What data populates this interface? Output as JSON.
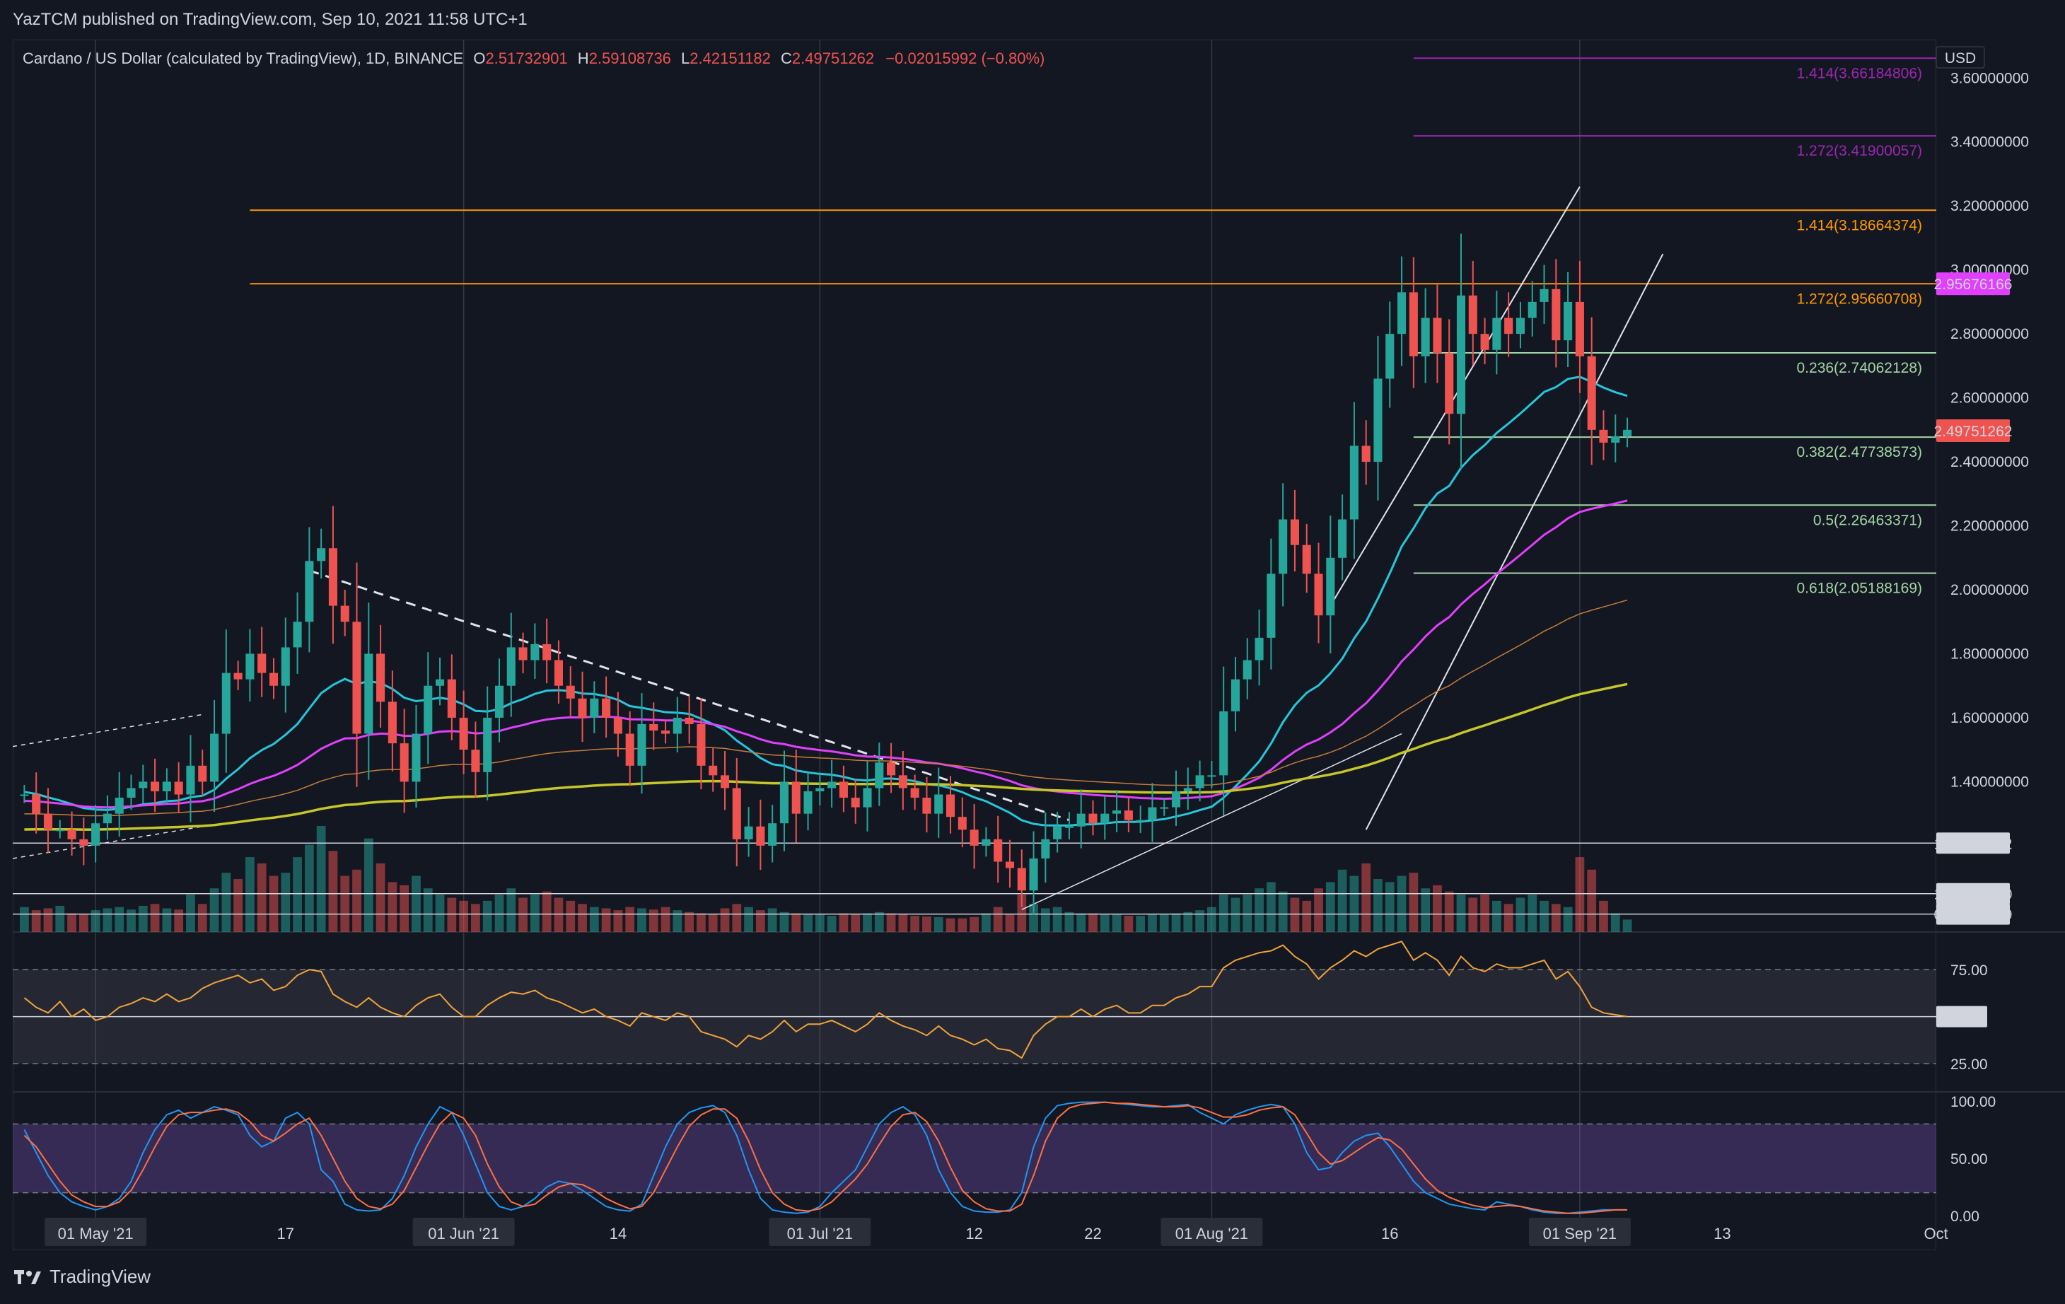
{
  "header": {
    "published": "YazTCM published on TradingView.com, Sep 10, 2021 11:58 UTC+1"
  },
  "legend": {
    "symbol": "Cardano / US Dollar (calculated by TradingView), 1D, BINANCE",
    "o_label": "O",
    "o_value": "2.51732901",
    "h_label": "H",
    "h_value": "2.59108736",
    "l_label": "L",
    "l_value": "2.42151182",
    "c_label": "C",
    "c_value": "2.49751262",
    "change": "−0.02015992 (−0.80%)"
  },
  "footer": {
    "brand": "TradingView"
  },
  "colors": {
    "bg": "#131722",
    "up": "#26a69a",
    "down": "#ef5350",
    "fib_purple": "#9c27b0",
    "fib_orange": "#ff9800",
    "fib_green": "#a5d6a7",
    "ema20": "#26c6da",
    "ema50": "#e040fb",
    "ema100": "#c67c3a",
    "ema200": "#c6c62a",
    "rsi": "#f0a23b",
    "stoch_k": "#2196f3",
    "stoch_d": "#ff7043"
  },
  "chart_data": {
    "type": "candlestick",
    "title": "Cardano / US Dollar (calculated by TradingView), 1D, BINANCE",
    "currency": "USD",
    "price_axis": {
      "ylim": [
        0.93,
        3.72
      ],
      "ticks": [
        "3.60000000",
        "3.40000000",
        "3.20000000",
        "3.00000000",
        "2.80000000",
        "2.60000000",
        "2.40000000",
        "2.20000000",
        "2.00000000",
        "1.80000000",
        "1.60000000",
        "1.40000000"
      ],
      "tick_values": [
        3.6,
        3.4,
        3.2,
        3.0,
        2.8,
        2.6,
        2.4,
        2.2,
        2.0,
        1.8,
        1.6,
        1.4
      ]
    },
    "x_axis": {
      "labels": [
        "01 May '21",
        "17",
        "01 Jun '21",
        "14",
        "01 Jul '21",
        "12",
        "22",
        "01 Aug '21",
        "16",
        "01 Sep '21",
        "13",
        "Oct"
      ],
      "day_index": [
        6,
        22,
        37,
        50,
        67,
        80,
        90,
        100,
        115,
        131,
        143,
        161
      ],
      "total_days": 162
    },
    "fib_levels": [
      {
        "label": "1.414(3.66184806)",
        "value": 3.66184806,
        "group": "purple"
      },
      {
        "label": "1.272(3.41900057)",
        "value": 3.41900057,
        "group": "purple"
      },
      {
        "label": "1.414(3.18664374)",
        "value": 3.18664374,
        "group": "orange"
      },
      {
        "label": "1.272(2.95660708)",
        "value": 2.95660708,
        "group": "orange"
      },
      {
        "label": "0.236(2.74062128)",
        "value": 2.74062128,
        "group": "green"
      },
      {
        "label": "0.382(2.47738573)",
        "value": 2.47738573,
        "group": "green"
      },
      {
        "label": "0.5(2.26463371)",
        "value": 2.26463371,
        "group": "green"
      },
      {
        "label": "0.618(2.05188169)",
        "value": 2.05188169,
        "group": "green"
      }
    ],
    "horizontal_levels": [
      {
        "label": "1.20791482",
        "value": 1.20791482
      },
      {
        "label": "1.05000000",
        "value": 1.05
      },
      {
        "label": "0.98617569",
        "value": 0.98617569
      }
    ],
    "price_tags": [
      {
        "label": "2.95676166",
        "value": 2.95676166,
        "color": "#e040fb"
      },
      {
        "label": "2.49751262",
        "value": 2.49751262,
        "color": "#ef5350"
      }
    ],
    "close_series": [
      1.36,
      1.3,
      1.25,
      1.25,
      1.22,
      1.2,
      1.27,
      1.3,
      1.35,
      1.38,
      1.4,
      1.37,
      1.4,
      1.36,
      1.45,
      1.4,
      1.55,
      1.74,
      1.72,
      1.8,
      1.74,
      1.7,
      1.82,
      1.9,
      2.09,
      2.13,
      1.95,
      1.9,
      1.55,
      1.8,
      1.65,
      1.52,
      1.4,
      1.55,
      1.7,
      1.72,
      1.6,
      1.5,
      1.43,
      1.6,
      1.7,
      1.82,
      1.78,
      1.83,
      1.78,
      1.7,
      1.66,
      1.6,
      1.66,
      1.6,
      1.55,
      1.45,
      1.58,
      1.56,
      1.55,
      1.6,
      1.58,
      1.45,
      1.42,
      1.38,
      1.22,
      1.26,
      1.2,
      1.27,
      1.4,
      1.3,
      1.37,
      1.38,
      1.4,
      1.35,
      1.32,
      1.38,
      1.46,
      1.42,
      1.38,
      1.35,
      1.3,
      1.36,
      1.29,
      1.25,
      1.2,
      1.22,
      1.15,
      1.13,
      1.06,
      1.16,
      1.22,
      1.26,
      1.26,
      1.3,
      1.27,
      1.3,
      1.31,
      1.28,
      1.28,
      1.32,
      1.32,
      1.37,
      1.38,
      1.42,
      1.42,
      1.62,
      1.72,
      1.78,
      1.85,
      2.05,
      2.22,
      2.14,
      2.05,
      1.92,
      2.1,
      2.22,
      2.45,
      2.4,
      2.66,
      2.8,
      2.93,
      2.73,
      2.85,
      2.74,
      2.55,
      2.92,
      2.8,
      2.75,
      2.85,
      2.8,
      2.85,
      2.9,
      2.94,
      2.78,
      2.9,
      2.73,
      2.5,
      2.46,
      2.48,
      2.5
    ],
    "volume": [
      40,
      35,
      38,
      42,
      30,
      28,
      35,
      38,
      40,
      36,
      42,
      45,
      38,
      36,
      60,
      45,
      70,
      95,
      85,
      120,
      110,
      90,
      95,
      120,
      140,
      170,
      130,
      90,
      100,
      150,
      110,
      80,
      75,
      90,
      70,
      60,
      55,
      50,
      45,
      50,
      60,
      70,
      55,
      60,
      65,
      55,
      50,
      45,
      40,
      38,
      35,
      40,
      38,
      36,
      40,
      35,
      32,
      30,
      28,
      38,
      45,
      40,
      35,
      38,
      32,
      30,
      28,
      28,
      26,
      30,
      28,
      30,
      32,
      30,
      28,
      26,
      25,
      24,
      22,
      22,
      24,
      30,
      40,
      28,
      60,
      45,
      38,
      40,
      32,
      30,
      30,
      28,
      28,
      26,
      26,
      28,
      28,
      30,
      32,
      35,
      40,
      60,
      55,
      60,
      70,
      80,
      65,
      55,
      50,
      70,
      80,
      100,
      90,
      110,
      85,
      80,
      90,
      95,
      70,
      75,
      65,
      60,
      55,
      60,
      50,
      45,
      55,
      60,
      50,
      45,
      40,
      120,
      100,
      50,
      30,
      20
    ]
  },
  "indicators": {
    "rsi": {
      "levels": [
        "75.00",
        "50.00",
        "25.00"
      ],
      "level_values": [
        75,
        50,
        25
      ],
      "current": "50.00",
      "ylim": [
        10,
        95
      ],
      "series": [
        60,
        55,
        52,
        58,
        50,
        54,
        48,
        50,
        55,
        57,
        60,
        58,
        62,
        58,
        60,
        65,
        68,
        70,
        72,
        68,
        70,
        64,
        66,
        72,
        75,
        74,
        62,
        58,
        55,
        60,
        55,
        52,
        50,
        56,
        60,
        62,
        55,
        50,
        50,
        56,
        60,
        63,
        62,
        64,
        60,
        58,
        55,
        52,
        54,
        50,
        48,
        45,
        52,
        50,
        48,
        52,
        50,
        42,
        40,
        38,
        34,
        40,
        38,
        42,
        48,
        42,
        46,
        46,
        48,
        45,
        42,
        46,
        52,
        48,
        45,
        43,
        40,
        45,
        40,
        38,
        35,
        38,
        33,
        32,
        28,
        40,
        46,
        50,
        50,
        54,
        50,
        54,
        56,
        52,
        52,
        56,
        56,
        60,
        62,
        66,
        66,
        76,
        80,
        82,
        84,
        85,
        88,
        82,
        78,
        70,
        76,
        80,
        85,
        82,
        86,
        88,
        90,
        80,
        84,
        80,
        72,
        82,
        76,
        74,
        78,
        76,
        76,
        78,
        80,
        70,
        74,
        66,
        55,
        52,
        51,
        50
      ]
    },
    "stoch_rsi": {
      "levels": [
        "100.00",
        "50.00",
        "0.00"
      ],
      "level_values": [
        100,
        50,
        0
      ],
      "ylim": [
        -8,
        108
      ],
      "upper_band": 80,
      "lower_band": 20,
      "k_series": [
        75,
        55,
        35,
        20,
        12,
        8,
        5,
        8,
        15,
        30,
        55,
        75,
        88,
        92,
        85,
        90,
        95,
        92,
        88,
        70,
        60,
        65,
        85,
        90,
        80,
        40,
        30,
        10,
        5,
        4,
        5,
        15,
        35,
        60,
        80,
        95,
        90,
        70,
        45,
        20,
        8,
        5,
        8,
        15,
        25,
        30,
        28,
        22,
        15,
        8,
        5,
        4,
        10,
        35,
        60,
        80,
        90,
        94,
        96,
        90,
        70,
        40,
        15,
        5,
        3,
        2,
        3,
        8,
        20,
        30,
        40,
        60,
        80,
        90,
        95,
        88,
        70,
        40,
        20,
        8,
        4,
        3,
        3,
        5,
        20,
        60,
        85,
        96,
        98,
        99,
        99,
        99,
        98,
        97,
        96,
        95,
        95,
        96,
        97,
        90,
        85,
        80,
        88,
        92,
        95,
        97,
        95,
        80,
        55,
        40,
        42,
        55,
        65,
        70,
        72,
        60,
        45,
        30,
        20,
        15,
        10,
        8,
        6,
        5,
        12,
        10,
        8,
        5,
        3,
        2,
        2,
        3,
        4,
        5,
        5,
        5
      ],
      "d_series": [
        70,
        60,
        45,
        30,
        18,
        12,
        8,
        8,
        12,
        22,
        40,
        60,
        78,
        88,
        90,
        90,
        92,
        93,
        90,
        82,
        70,
        65,
        72,
        80,
        85,
        70,
        50,
        30,
        15,
        8,
        6,
        10,
        22,
        42,
        62,
        80,
        90,
        85,
        70,
        45,
        25,
        12,
        8,
        10,
        18,
        25,
        28,
        27,
        22,
        15,
        10,
        6,
        8,
        20,
        40,
        60,
        78,
        88,
        93,
        93,
        85,
        65,
        40,
        20,
        10,
        5,
        4,
        6,
        12,
        22,
        32,
        45,
        62,
        78,
        88,
        90,
        82,
        65,
        42,
        22,
        12,
        6,
        4,
        4,
        10,
        35,
        65,
        85,
        94,
        97,
        98,
        99,
        98,
        98,
        97,
        96,
        95,
        95,
        96,
        94,
        90,
        86,
        86,
        88,
        92,
        94,
        95,
        88,
        72,
        55,
        45,
        48,
        55,
        62,
        68,
        66,
        58,
        45,
        32,
        22,
        16,
        12,
        9,
        7,
        8,
        9,
        8,
        6,
        4,
        3,
        2,
        2,
        3,
        4,
        5,
        5
      ]
    }
  }
}
